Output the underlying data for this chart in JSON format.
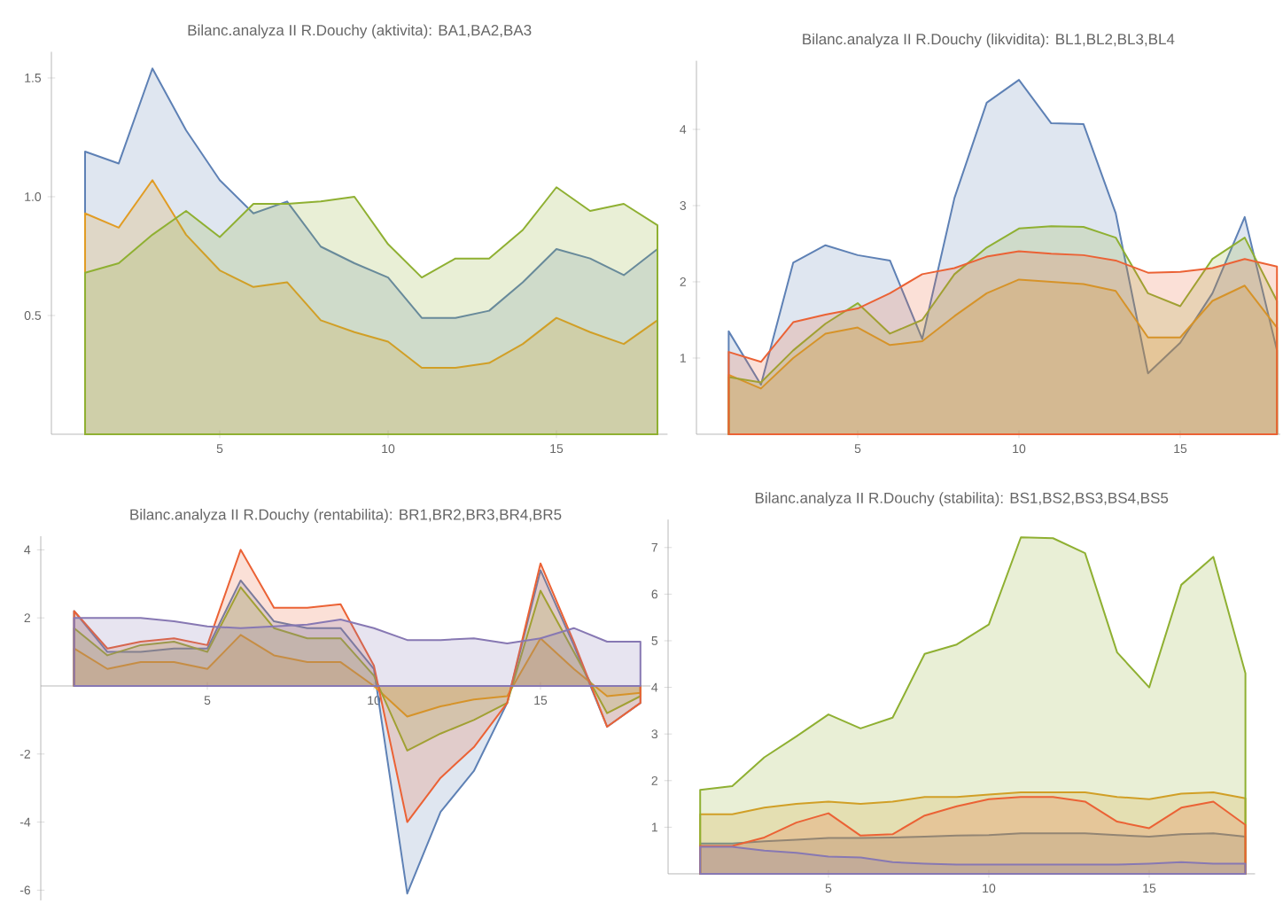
{
  "chart_data": [
    {
      "type": "area",
      "title": "Bilanc.analyza II R.Douchy (aktivita): BA1,BA2,BA3",
      "x": [
        1,
        2,
        3,
        4,
        5,
        6,
        7,
        8,
        9,
        10,
        11,
        12,
        13,
        14,
        15,
        16,
        17,
        18
      ],
      "xlim": [
        0,
        18.3
      ],
      "ylim": [
        0,
        1.61
      ],
      "xticks": [
        5,
        10,
        15
      ],
      "yticks": [
        0.5,
        {
          "value": 1,
          "label": "1.0"
        },
        1.5
      ],
      "series": [
        {
          "color": "#5e81b5",
          "values": [
            1.19,
            1.14,
            1.54,
            1.28,
            1.07,
            0.93,
            0.98,
            0.79,
            0.72,
            0.66,
            0.49,
            0.49,
            0.52,
            0.64,
            0.78,
            0.74,
            0.67,
            0.78
          ]
        },
        {
          "color": "#e19c24",
          "values": [
            0.93,
            0.87,
            1.07,
            0.84,
            0.69,
            0.62,
            0.64,
            0.48,
            0.43,
            0.39,
            0.28,
            0.28,
            0.3,
            0.38,
            0.49,
            0.43,
            0.38,
            0.48
          ]
        },
        {
          "color": "#8fb032",
          "values": [
            0.68,
            0.72,
            0.84,
            0.94,
            0.83,
            0.97,
            0.97,
            0.98,
            1.0,
            0.8,
            0.66,
            0.74,
            0.74,
            0.86,
            1.04,
            0.94,
            0.97,
            0.88
          ]
        }
      ]
    },
    {
      "type": "area",
      "title": "Bilanc.analyza II R.Douchy (likvidita): BL1,BL2,BL3,BL4",
      "x": [
        1,
        2,
        3,
        4,
        5,
        6,
        7,
        8,
        9,
        10,
        11,
        12,
        13,
        14,
        15,
        16,
        17,
        18
      ],
      "xlim": [
        0,
        18.1
      ],
      "ylim": [
        0,
        4.9
      ],
      "xticks": [
        5,
        10,
        15
      ],
      "yticks": [
        1,
        2,
        3,
        4
      ],
      "series": [
        {
          "color": "#5e81b5",
          "values": [
            1.35,
            0.65,
            2.25,
            2.48,
            2.35,
            2.28,
            1.25,
            3.1,
            4.35,
            4.65,
            4.08,
            4.07,
            2.9,
            0.8,
            1.2,
            1.85,
            2.85,
            1.1
          ]
        },
        {
          "color": "#e19c24",
          "values": [
            0.78,
            0.6,
            1.0,
            1.32,
            1.4,
            1.17,
            1.22,
            1.55,
            1.85,
            2.03,
            2.0,
            1.97,
            1.88,
            1.27,
            1.27,
            1.75,
            1.95,
            1.4
          ]
        },
        {
          "color": "#8fb032",
          "values": [
            0.75,
            0.68,
            1.1,
            1.45,
            1.72,
            1.32,
            1.5,
            2.1,
            2.45,
            2.7,
            2.73,
            2.72,
            2.58,
            1.85,
            1.68,
            2.3,
            2.58,
            1.75
          ]
        },
        {
          "color": "#eb6235",
          "values": [
            1.08,
            0.95,
            1.47,
            1.57,
            1.65,
            1.85,
            2.1,
            2.18,
            2.33,
            2.4,
            2.37,
            2.35,
            2.28,
            2.12,
            2.13,
            2.18,
            2.3,
            2.2
          ]
        }
      ]
    },
    {
      "type": "area",
      "title": "Bilanc.analyza II R.Douchy (rentabilita): BR1,BR2,BR3,BR4,BR5",
      "x": [
        1,
        2,
        3,
        4,
        5,
        6,
        7,
        8,
        9,
        10,
        11,
        12,
        13,
        14,
        15,
        16,
        17,
        18
      ],
      "xlim": [
        0,
        18.3
      ],
      "ylim": [
        -6.3,
        4.4
      ],
      "xticks": [
        5,
        10,
        15
      ],
      "yticks": [
        -6,
        -4,
        -2,
        2,
        4
      ],
      "series": [
        {
          "color": "#5e81b5",
          "values": [
            2.2,
            1.0,
            1.0,
            1.1,
            1.1,
            3.1,
            1.9,
            1.7,
            1.7,
            0.5,
            -6.1,
            -3.7,
            -2.5,
            -0.5,
            3.4,
            1.2,
            -1.2,
            -0.5
          ]
        },
        {
          "color": "#e19c24",
          "values": [
            1.1,
            0.5,
            0.7,
            0.7,
            0.5,
            1.5,
            0.9,
            0.7,
            0.7,
            0.0,
            -0.9,
            -0.6,
            -0.4,
            -0.3,
            1.4,
            0.5,
            -0.3,
            -0.2
          ]
        },
        {
          "color": "#8fb032",
          "values": [
            1.7,
            0.9,
            1.2,
            1.3,
            1.0,
            2.9,
            1.7,
            1.4,
            1.4,
            0.3,
            -1.9,
            -1.4,
            -1.0,
            -0.5,
            2.8,
            1.0,
            -0.8,
            -0.3
          ]
        },
        {
          "color": "#eb6235",
          "values": [
            2.2,
            1.1,
            1.3,
            1.4,
            1.2,
            4.0,
            2.3,
            2.3,
            2.4,
            0.6,
            -4.0,
            -2.7,
            -1.8,
            -0.5,
            3.6,
            1.3,
            -1.2,
            -0.5
          ]
        },
        {
          "color": "#8778b3",
          "values": [
            2.0,
            2.0,
            2.0,
            1.9,
            1.75,
            1.7,
            1.75,
            1.8,
            1.95,
            1.7,
            1.35,
            1.35,
            1.4,
            1.25,
            1.4,
            1.7,
            1.3,
            1.3
          ]
        }
      ]
    },
    {
      "type": "area",
      "title": "Bilanc.analyza II R.Douchy (stabilita): BS1,BS2,BS3,BS4,BS5",
      "x": [
        1,
        2,
        3,
        4,
        5,
        6,
        7,
        8,
        9,
        10,
        11,
        12,
        13,
        14,
        15,
        16,
        17,
        18
      ],
      "xlim": [
        0,
        18.3
      ],
      "ylim": [
        0,
        7.6
      ],
      "xticks": [
        5,
        10,
        15
      ],
      "yticks": [
        1,
        2,
        3,
        4,
        5,
        6,
        7
      ],
      "series": [
        {
          "color": "#5e81b5",
          "values": [
            0.65,
            0.65,
            0.7,
            0.73,
            0.77,
            0.77,
            0.78,
            0.8,
            0.82,
            0.83,
            0.87,
            0.87,
            0.87,
            0.83,
            0.8,
            0.85,
            0.87,
            0.8
          ]
        },
        {
          "color": "#e19c24",
          "values": [
            1.28,
            1.28,
            1.42,
            1.5,
            1.55,
            1.5,
            1.55,
            1.65,
            1.65,
            1.7,
            1.75,
            1.75,
            1.75,
            1.65,
            1.6,
            1.72,
            1.75,
            1.62
          ]
        },
        {
          "color": "#8fb032",
          "values": [
            1.8,
            1.88,
            2.5,
            2.95,
            3.42,
            3.12,
            3.35,
            4.72,
            4.92,
            5.35,
            7.22,
            7.2,
            6.88,
            4.75,
            4.0,
            6.2,
            6.8,
            4.3
          ]
        },
        {
          "color": "#eb6235",
          "values": [
            0.6,
            0.6,
            0.78,
            1.1,
            1.3,
            0.82,
            0.85,
            1.25,
            1.45,
            1.6,
            1.65,
            1.65,
            1.55,
            1.12,
            0.98,
            1.42,
            1.55,
            1.05
          ]
        },
        {
          "color": "#8778b3",
          "values": [
            0.58,
            0.58,
            0.5,
            0.45,
            0.37,
            0.35,
            0.25,
            0.22,
            0.2,
            0.2,
            0.2,
            0.2,
            0.2,
            0.2,
            0.22,
            0.25,
            0.22,
            0.22
          ]
        }
      ]
    }
  ]
}
